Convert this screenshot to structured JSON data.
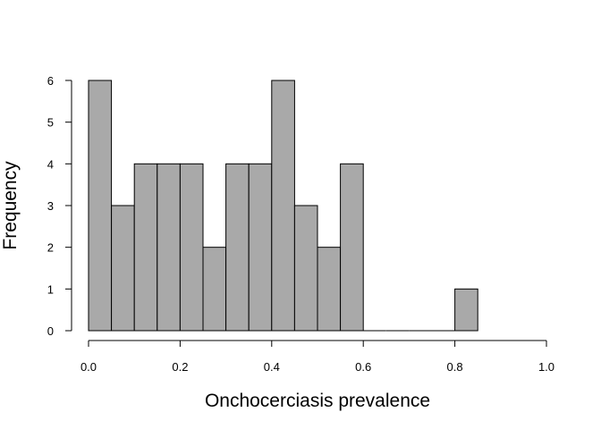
{
  "chart_data": {
    "type": "bar",
    "subtype": "histogram",
    "title": "",
    "xlabel": "Onchocerciasis prevalence",
    "ylabel": "Frequency",
    "bins": [
      {
        "start": 0.0,
        "end": 0.05,
        "count": 6
      },
      {
        "start": 0.05,
        "end": 0.1,
        "count": 3
      },
      {
        "start": 0.1,
        "end": 0.15,
        "count": 4
      },
      {
        "start": 0.15,
        "end": 0.2,
        "count": 4
      },
      {
        "start": 0.2,
        "end": 0.25,
        "count": 4
      },
      {
        "start": 0.25,
        "end": 0.3,
        "count": 2
      },
      {
        "start": 0.3,
        "end": 0.35,
        "count": 4
      },
      {
        "start": 0.35,
        "end": 0.4,
        "count": 4
      },
      {
        "start": 0.4,
        "end": 0.45,
        "count": 6
      },
      {
        "start": 0.45,
        "end": 0.5,
        "count": 3
      },
      {
        "start": 0.5,
        "end": 0.55,
        "count": 2
      },
      {
        "start": 0.55,
        "end": 0.6,
        "count": 4
      },
      {
        "start": 0.6,
        "end": 0.65,
        "count": 0
      },
      {
        "start": 0.65,
        "end": 0.7,
        "count": 0
      },
      {
        "start": 0.7,
        "end": 0.75,
        "count": 0
      },
      {
        "start": 0.75,
        "end": 0.8,
        "count": 0
      },
      {
        "start": 0.8,
        "end": 0.85,
        "count": 1
      }
    ],
    "xlim": [
      0,
      1
    ],
    "ylim": [
      0,
      6
    ],
    "x_ticks": [
      "0.0",
      "0.2",
      "0.4",
      "0.6",
      "0.8",
      "1.0"
    ],
    "y_ticks": [
      "0",
      "1",
      "2",
      "3",
      "4",
      "5",
      "6"
    ],
    "grid": false,
    "legend": "none",
    "bar_color": "#a9a9a9",
    "edge_color": "#000000"
  }
}
